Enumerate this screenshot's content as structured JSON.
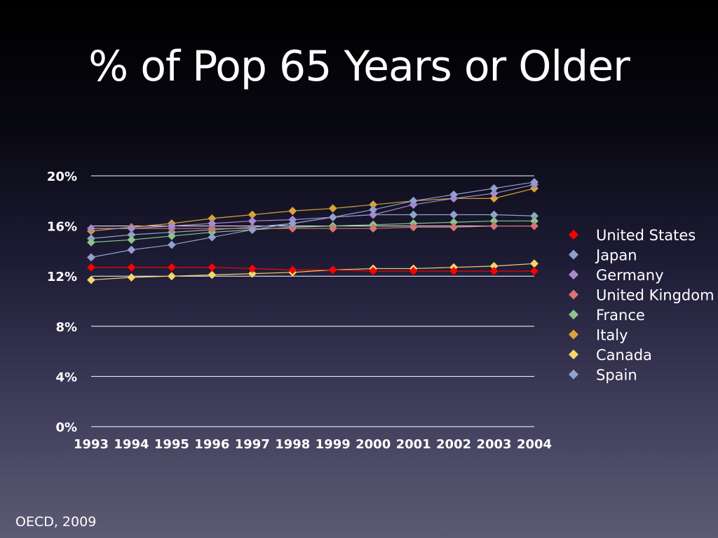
{
  "title": "% of Pop 65 Years or Older",
  "source": "OECD, 2009",
  "chart_data": {
    "type": "line",
    "x": [
      1993,
      1994,
      1995,
      1996,
      1997,
      1998,
      1999,
      2000,
      2001,
      2002,
      2003,
      2004
    ],
    "y_ticks": [
      "0%",
      "4%",
      "8%",
      "12%",
      "16%",
      "20%"
    ],
    "ylim": [
      0,
      20
    ],
    "grid": true,
    "legend_position": "right",
    "series": [
      {
        "name": "United States",
        "color": "#ff0000",
        "values": [
          12.7,
          12.7,
          12.7,
          12.7,
          12.6,
          12.5,
          12.5,
          12.4,
          12.4,
          12.4,
          12.4,
          12.4
        ]
      },
      {
        "name": "Japan",
        "color": "#8fa0d0",
        "values": [
          13.5,
          14.1,
          14.5,
          15.1,
          15.7,
          16.2,
          16.7,
          17.3,
          18.0,
          18.5,
          19.0,
          19.5
        ]
      },
      {
        "name": "Germany",
        "color": "#a78bd0",
        "values": [
          15.8,
          15.8,
          16.0,
          16.2,
          16.4,
          16.5,
          16.7,
          16.9,
          17.7,
          18.2,
          18.6,
          19.3
        ]
      },
      {
        "name": "United Kingdom",
        "color": "#d37575",
        "values": [
          15.8,
          15.8,
          15.8,
          15.8,
          15.8,
          15.8,
          15.8,
          15.8,
          15.9,
          15.9,
          16.0,
          16.0
        ]
      },
      {
        "name": "France",
        "color": "#8cc48c",
        "values": [
          14.7,
          14.9,
          15.2,
          15.5,
          15.7,
          15.9,
          16.0,
          16.1,
          16.2,
          16.3,
          16.4,
          16.4
        ]
      },
      {
        "name": "Italy",
        "color": "#d9a33a",
        "values": [
          15.6,
          15.9,
          16.2,
          16.6,
          16.9,
          17.2,
          17.4,
          17.7,
          18.0,
          18.2,
          18.2,
          19.0
        ]
      },
      {
        "name": "Canada",
        "color": "#f5d56a",
        "values": [
          11.7,
          11.9,
          12.0,
          12.1,
          12.2,
          12.3,
          12.5,
          12.6,
          12.6,
          12.7,
          12.8,
          13.0
        ]
      },
      {
        "name": "Spain",
        "color": "#8ea4cc",
        "values": [
          15.0,
          15.3,
          15.5,
          15.7,
          15.9,
          16.2,
          16.7,
          16.9,
          16.9,
          16.9,
          16.9,
          16.8
        ]
      }
    ]
  }
}
